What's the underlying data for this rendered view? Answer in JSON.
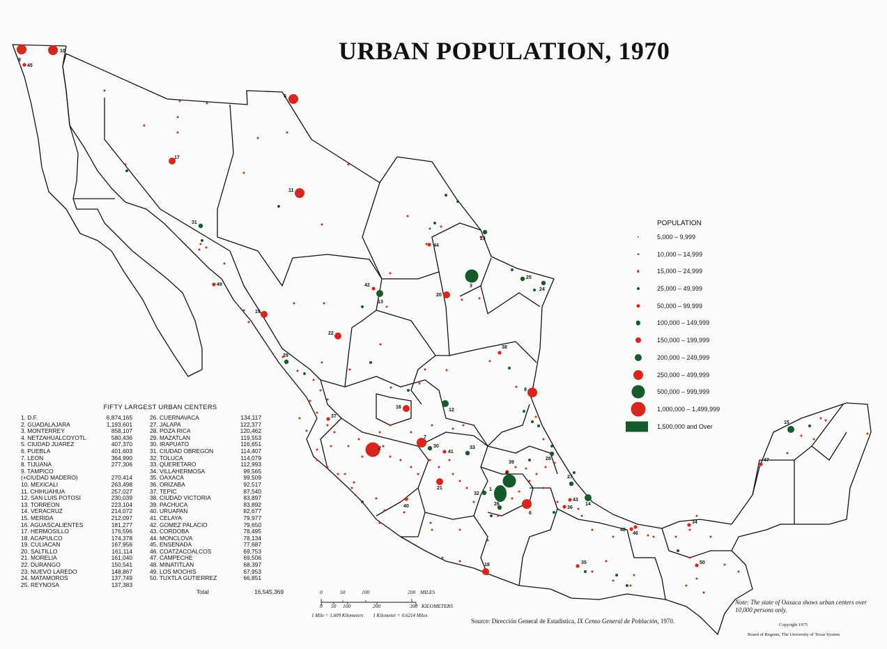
{
  "title": "URBAN POPULATION, 1970",
  "legend": {
    "title": "POPULATION",
    "items": [
      {
        "label": "5,000 – 9,999",
        "color": "#d9261c",
        "r": 1.2
      },
      {
        "label": "10,000 – 14,999",
        "color": "#145a2a",
        "r": 1.4
      },
      {
        "label": "15,000 – 24,999",
        "color": "#d9261c",
        "r": 1.7
      },
      {
        "label": "25,000 – 49,999",
        "color": "#145a2a",
        "r": 2
      },
      {
        "label": "50,000 – 99,999",
        "color": "#d9261c",
        "r": 2.6
      },
      {
        "label": "100,000 – 149,999",
        "color": "#145a2a",
        "r": 3.2
      },
      {
        "label": "150,000 – 199,999",
        "color": "#d9261c",
        "r": 4
      },
      {
        "label": "200,000 – 249,999",
        "color": "#145a2a",
        "r": 5
      },
      {
        "label": "250,000 – 499,999",
        "color": "#d9261c",
        "r": 7
      },
      {
        "label": "500,000 – 999,999",
        "color": "#145a2a",
        "r": 9.5
      },
      {
        "label": "1,000,000 – 1,499,999",
        "color": "#d9261c",
        "r": 10.5
      },
      {
        "label": "1,500,000 and Over",
        "color": "#145a2a",
        "square": true
      }
    ]
  },
  "cities_table": {
    "title": "FIFTY LARGEST URBAN CENTERS",
    "col1": [
      {
        "name": "1.  D.F.",
        "pop": "6,874,165"
      },
      {
        "name": "2.  GUADALAJARA",
        "pop": "1,193,601"
      },
      {
        "name": "3.  MONTERREY",
        "pop": "858,107"
      },
      {
        "name": "4.  NETZAHUALCOYOTL",
        "pop": "580,436"
      },
      {
        "name": "5.  CIUDAD JUAREZ",
        "pop": "407,370"
      },
      {
        "name": "6.  PUEBLA",
        "pop": "401,603"
      },
      {
        "name": "7.  LEON",
        "pop": "364,990"
      },
      {
        "name": "8.  TIJUANA",
        "pop": "277,306"
      },
      {
        "name": "9.  TAMPICO",
        "pop": ""
      },
      {
        "name": "      (+CIUDAD MADERO)",
        "pop": "270,414"
      },
      {
        "name": "10. MEXICALI",
        "pop": "263,498"
      },
      {
        "name": "11. CHIHUAHUA",
        "pop": "257,027"
      },
      {
        "name": "12. SAN LUIS POTOSI",
        "pop": "230,039"
      },
      {
        "name": "13. TORREON",
        "pop": "223,104"
      },
      {
        "name": "14. VERACRUZ",
        "pop": "214,072"
      },
      {
        "name": "15. MERIDA",
        "pop": "212,097"
      },
      {
        "name": "16. AGUASCALIENTES",
        "pop": "181,277"
      },
      {
        "name": "17. HERMOSILLO",
        "pop": "176,596"
      },
      {
        "name": "18. ACAPULCO",
        "pop": "174,378"
      },
      {
        "name": "19. CULIACAN",
        "pop": "167,956"
      },
      {
        "name": "20. SALTILLO",
        "pop": "161,114"
      },
      {
        "name": "21. MORELIA",
        "pop": "161,040"
      },
      {
        "name": "22. DURANGO",
        "pop": "150,541"
      },
      {
        "name": "23. NUEVO LAREDO",
        "pop": "148,867"
      },
      {
        "name": "24. MATAMOROS",
        "pop": "137,749"
      },
      {
        "name": "25. REYNOSA",
        "pop": "137,383"
      }
    ],
    "col2": [
      {
        "name": "26. CUERNAVACA",
        "pop": "134,117"
      },
      {
        "name": "27. JALAPA",
        "pop": "122,377"
      },
      {
        "name": "28. POZA RICA",
        "pop": "120,462"
      },
      {
        "name": "29. MAZATLAN",
        "pop": "119,553"
      },
      {
        "name": "30. IRAPUATO",
        "pop": "116,651"
      },
      {
        "name": "31. CIUDAD OBREGON",
        "pop": "114,407"
      },
      {
        "name": "32. TOLUCA",
        "pop": "114,079"
      },
      {
        "name": "33. QUERETARO",
        "pop": "112,993"
      },
      {
        "name": "34. VILLAHERMOSA",
        "pop": "99,565"
      },
      {
        "name": "35. OAXACA",
        "pop": "99,509"
      },
      {
        "name": "36. ORIZABA",
        "pop": "92,517"
      },
      {
        "name": "37. TEPIC",
        "pop": "87,540"
      },
      {
        "name": "38. CIUDAD VICTORIA",
        "pop": "83,897"
      },
      {
        "name": "39. PACHUCA",
        "pop": "83,892"
      },
      {
        "name": "40. URUAPAN",
        "pop": "82,677"
      },
      {
        "name": "41. CELAYA",
        "pop": "79,977"
      },
      {
        "name": "42. GOMEZ PALACIO",
        "pop": "79,650"
      },
      {
        "name": "43. CORDOBA",
        "pop": "78,495"
      },
      {
        "name": "44. MONCLOVA",
        "pop": "78,134"
      },
      {
        "name": "45. ENSENADA",
        "pop": "77,687"
      },
      {
        "name": "46. COATZACOALCOS",
        "pop": "69,753"
      },
      {
        "name": "47. CAMPECHE",
        "pop": "69,506"
      },
      {
        "name": "48. MINATITLAN",
        "pop": "68,397"
      },
      {
        "name": "49. LOS MOCHIS",
        "pop": "67,953"
      },
      {
        "name": "50. TUXTLA GUTIERREZ",
        "pop": "66,851"
      }
    ],
    "total_label": "Total",
    "total_value": "16,545,369"
  },
  "scale": {
    "miles_ticks": [
      "0",
      "50",
      "100",
      "200"
    ],
    "miles_unit": "MILES",
    "km_ticks": [
      "0",
      "50",
      "100",
      "200",
      "300"
    ],
    "km_unit": "KILOMETERS",
    "conversion1": "1 Mile = 1,609 Kilometers",
    "conversion2": "1 Kilometer = 0.6214 Miles"
  },
  "source_prefix": "Source:  Dirección General de Estadística, ",
  "source_italic": "IX Censo General de Población",
  "source_suffix": ", 1970.",
  "note": "Note: The state of Oaxaca shows urban centers over 10,000 persons only.",
  "copyright": "Copyright 1975",
  "board": "Board of Regents, The University of Texas System",
  "colors": {
    "red": "#d9261c",
    "green": "#145a2a",
    "line": "#111111"
  },
  "numbered_cities": [
    {
      "n": "1",
      "color": "green",
      "size": "xl"
    },
    {
      "n": "2",
      "color": "red",
      "size": "xl"
    },
    {
      "n": "3",
      "color": "green",
      "size": "l"
    },
    {
      "n": "4",
      "color": "green",
      "size": "l"
    },
    {
      "n": "5",
      "color": "red",
      "size": "m"
    },
    {
      "n": "6",
      "color": "red",
      "size": "m"
    },
    {
      "n": "7",
      "color": "red",
      "size": "m"
    },
    {
      "n": "8",
      "color": "red",
      "size": "m"
    },
    {
      "n": "9",
      "color": "red",
      "size": "m"
    },
    {
      "n": "10",
      "color": "red",
      "size": "m"
    },
    {
      "n": "11",
      "color": "red",
      "size": "m"
    },
    {
      "n": "12",
      "color": "green",
      "size": "s"
    },
    {
      "n": "13",
      "color": "green",
      "size": "s"
    },
    {
      "n": "14",
      "color": "green",
      "size": "s"
    },
    {
      "n": "15",
      "color": "green",
      "size": "s"
    },
    {
      "n": "16",
      "color": "red",
      "size": "s"
    },
    {
      "n": "17",
      "color": "red",
      "size": "s"
    },
    {
      "n": "18",
      "color": "red",
      "size": "s"
    },
    {
      "n": "19",
      "color": "red",
      "size": "s"
    },
    {
      "n": "20",
      "color": "red",
      "size": "s"
    },
    {
      "n": "21",
      "color": "red",
      "size": "s"
    },
    {
      "n": "22",
      "color": "red",
      "size": "s"
    },
    {
      "n": "23",
      "color": "green",
      "size": "xs"
    },
    {
      "n": "24",
      "color": "green",
      "size": "xs"
    },
    {
      "n": "25",
      "color": "green",
      "size": "xs"
    },
    {
      "n": "26",
      "color": "green",
      "size": "xs"
    },
    {
      "n": "27",
      "color": "green",
      "size": "xs"
    },
    {
      "n": "28",
      "color": "green",
      "size": "xs"
    },
    {
      "n": "29",
      "color": "green",
      "size": "xs"
    },
    {
      "n": "30",
      "color": "green",
      "size": "xs"
    },
    {
      "n": "31",
      "color": "green",
      "size": "xs"
    },
    {
      "n": "32",
      "color": "green",
      "size": "xs"
    },
    {
      "n": "33",
      "color": "green",
      "size": "xs"
    },
    {
      "n": "34",
      "color": "red",
      "size": "xxs"
    },
    {
      "n": "35",
      "color": "red",
      "size": "xxs"
    },
    {
      "n": "36",
      "color": "red",
      "size": "xxs"
    },
    {
      "n": "37",
      "color": "red",
      "size": "xxs"
    },
    {
      "n": "38",
      "color": "red",
      "size": "xxs"
    },
    {
      "n": "39",
      "color": "red",
      "size": "xxs"
    },
    {
      "n": "40",
      "color": "red",
      "size": "xxs"
    },
    {
      "n": "41",
      "color": "red",
      "size": "xxs"
    },
    {
      "n": "42",
      "color": "red",
      "size": "xxs"
    },
    {
      "n": "43",
      "color": "red",
      "size": "xxs"
    },
    {
      "n": "44",
      "color": "red",
      "size": "xxs"
    },
    {
      "n": "45",
      "color": "red",
      "size": "xxs"
    },
    {
      "n": "46",
      "color": "red",
      "size": "xxs"
    },
    {
      "n": "47",
      "color": "red",
      "size": "xxs"
    },
    {
      "n": "48",
      "color": "red",
      "size": "xxs"
    },
    {
      "n": "49",
      "color": "red",
      "size": "xxs"
    },
    {
      "n": "50",
      "color": "red",
      "size": "xxs"
    }
  ]
}
